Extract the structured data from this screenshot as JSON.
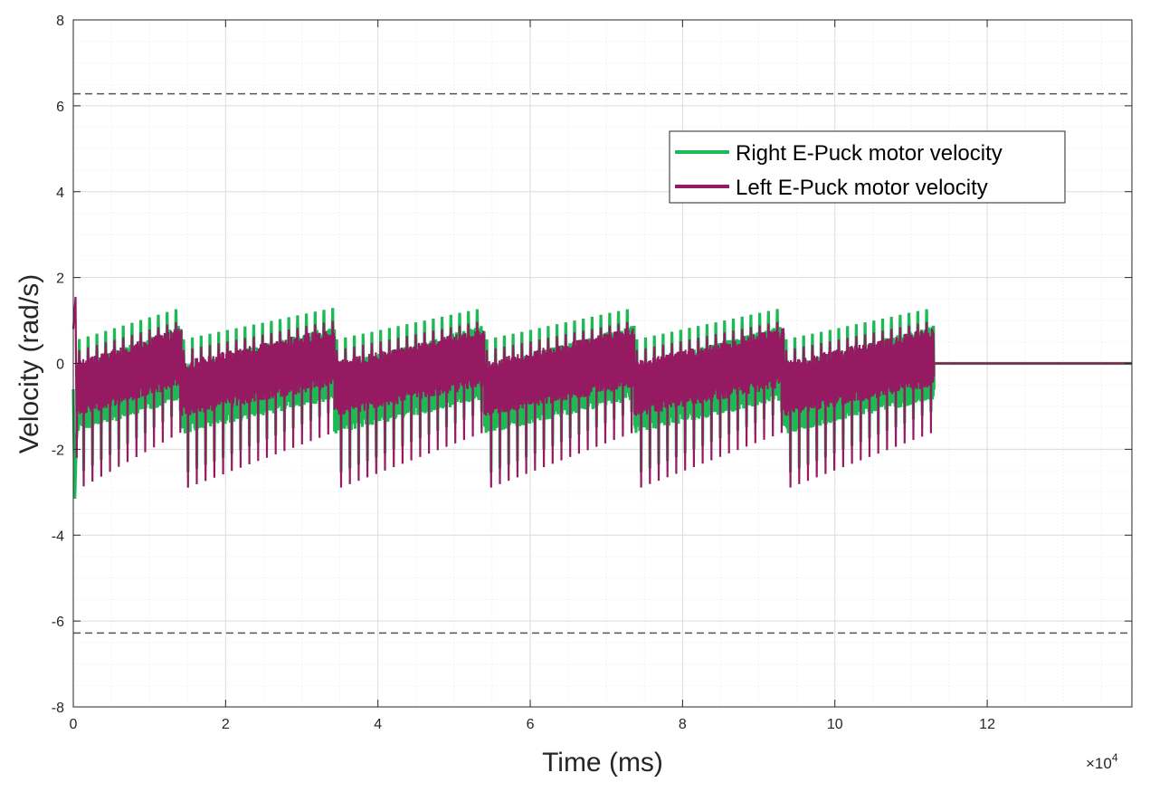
{
  "chart_data": {
    "type": "line",
    "title": "",
    "xlabel": "Time (ms)",
    "ylabel": "Velocity (rad/s)",
    "x_multiplier_label": "×10",
    "x_multiplier_exponent": "4",
    "xlim": [
      0,
      13.9
    ],
    "ylim": [
      -8,
      8
    ],
    "x_ticks": [
      0,
      2,
      4,
      6,
      8,
      10,
      12
    ],
    "x_tick_labels": [
      "0",
      "2",
      "4",
      "6",
      "8",
      "10",
      "12"
    ],
    "y_ticks": [
      -8,
      -6,
      -4,
      -2,
      0,
      2,
      4,
      6,
      8
    ],
    "y_tick_labels": [
      "-8",
      "-6",
      "-4",
      "-2",
      "0",
      "2",
      "4",
      "6",
      "8"
    ],
    "grid": true,
    "minor_grid": true,
    "legend_position": "top-right",
    "reference_lines": [
      {
        "y": 6.28,
        "style": "dashed",
        "color": "#555555"
      },
      {
        "y": -6.28,
        "style": "dashed",
        "color": "#555555"
      }
    ],
    "cycles": [
      {
        "start": 0.05,
        "end": 1.42
      },
      {
        "start": 1.42,
        "end": 3.43
      },
      {
        "start": 3.43,
        "end": 5.4
      },
      {
        "start": 5.4,
        "end": 7.37
      },
      {
        "start": 7.37,
        "end": 9.33
      },
      {
        "start": 9.33,
        "end": 11.3
      }
    ],
    "flat_after": 11.3,
    "series": [
      {
        "name": "Right E-Puck motor velocity",
        "color": "#1db954",
        "band_low_start": -1.4,
        "band_low_end": -0.6,
        "band_high_start": -0.3,
        "band_high_end": 0.65,
        "spike_high_start": 0.55,
        "spike_high_end": 1.3,
        "spike_low_start": -2.6,
        "spike_low_end": -1.1,
        "initial_min": -3.15,
        "final_value": 0
      },
      {
        "name": "Left E-Puck motor velocity",
        "color": "#961a62",
        "band_low_start": -1.0,
        "band_low_end": -0.3,
        "band_high_start": -0.2,
        "band_high_end": 0.6,
        "spike_high_start": 0.3,
        "spike_high_end": 1.0,
        "spike_low_start": -2.95,
        "spike_low_end": -1.6,
        "initial_max": 1.55,
        "final_value": 0
      }
    ]
  }
}
